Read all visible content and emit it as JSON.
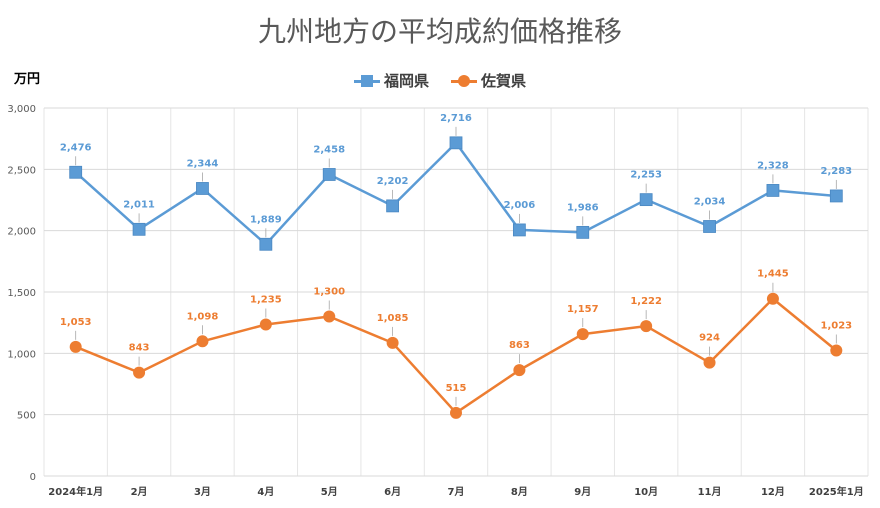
{
  "chart_data": {
    "type": "line",
    "title": "九州地方の平均成約価格推移",
    "ylabel": "万円",
    "xlabel": "",
    "categories": [
      "2024年1月",
      "2月",
      "3月",
      "4月",
      "5月",
      "6月",
      "7月",
      "8月",
      "9月",
      "10月",
      "11月",
      "12月",
      "2025年1月"
    ],
    "ylim": [
      0,
      3000
    ],
    "yticks": [
      0,
      500,
      1000,
      1500,
      2000,
      2500,
      3000
    ],
    "ytick_labels": [
      "0",
      "500",
      "1,000",
      "1,500",
      "2,000",
      "2,500",
      "3,000"
    ],
    "grid": true,
    "legend_position": "top-center",
    "series": [
      {
        "name": "福岡県",
        "color": "#5B9BD5",
        "marker": "square",
        "values": [
          2476,
          2011,
          2344,
          1889,
          2458,
          2202,
          2716,
          2006,
          1986,
          2253,
          2034,
          2328,
          2283
        ],
        "labels": [
          "2,476",
          "2,011",
          "2,344",
          "1,889",
          "2,458",
          "2,202",
          "2,716",
          "2,006",
          "1,986",
          "2,253",
          "2,034",
          "2,328",
          "2,283"
        ]
      },
      {
        "name": "佐賀県",
        "color": "#ED7D31",
        "marker": "circle",
        "values": [
          1053,
          843,
          1098,
          1235,
          1300,
          1085,
          515,
          863,
          1157,
          1222,
          924,
          1445,
          1023
        ],
        "labels": [
          "1,053",
          "843",
          "1,098",
          "1,235",
          "1,300",
          "1,085",
          "515",
          "863",
          "1,157",
          "1,222",
          "924",
          "1,445",
          "1,023"
        ]
      }
    ]
  }
}
